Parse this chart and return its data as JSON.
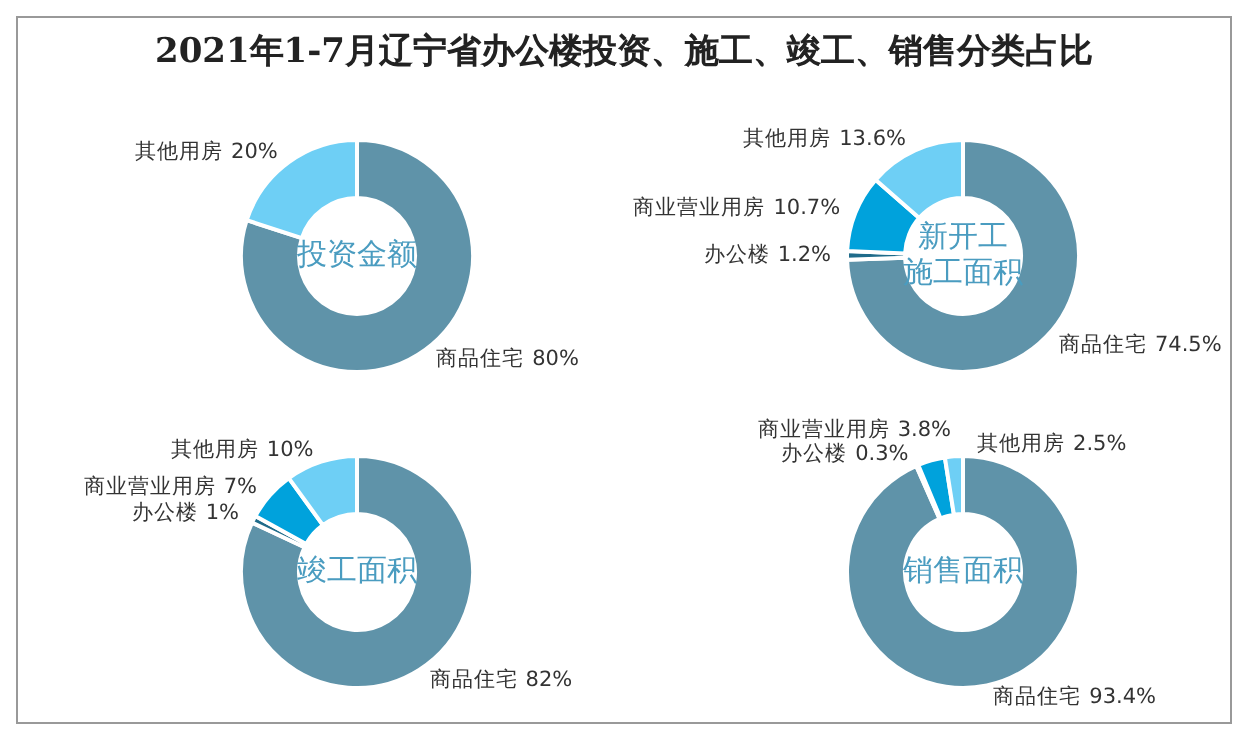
{
  "chart_data": [
    {
      "type": "donut",
      "title": "投资金额",
      "annotations": [
        "2021年1-7月辽宁省办公楼投资、施工、竣工、销售分类占比"
      ],
      "categories": [
        "商品住宅",
        "其他用房"
      ],
      "values": [
        80,
        20
      ],
      "value_labels": [
        "80%",
        "20%"
      ],
      "colors": [
        "#5f93a9",
        "#6ecff5"
      ],
      "legend": false
    },
    {
      "type": "donut",
      "title": "新开工施工面积",
      "categories": [
        "商品住宅",
        "办公楼",
        "商业营业用房",
        "其他用房"
      ],
      "values": [
        74.5,
        1.2,
        10.7,
        13.6
      ],
      "value_labels": [
        "74.5%",
        "1.2%",
        "10.7%",
        "13.6%"
      ],
      "colors": [
        "#5f93a9",
        "#1f6b8a",
        "#00a2dc",
        "#6ecff5"
      ],
      "legend": false
    },
    {
      "type": "donut",
      "title": "竣工面积",
      "categories": [
        "商品住宅",
        "办公楼",
        "商业营业用房",
        "其他用房"
      ],
      "values": [
        82,
        1,
        7,
        10
      ],
      "value_labels": [
        "82%",
        "1%",
        "7%",
        "10%"
      ],
      "colors": [
        "#5f93a9",
        "#1f6b8a",
        "#00a2dc",
        "#6ecff5"
      ],
      "legend": false
    },
    {
      "type": "donut",
      "title": "销售面积",
      "categories": [
        "商品住宅",
        "办公楼",
        "商业营业用房",
        "其他用房"
      ],
      "values": [
        93.4,
        0.3,
        3.8,
        2.5
      ],
      "value_labels": [
        "93.4%",
        "0.3%",
        "3.8%",
        "2.5%"
      ],
      "colors": [
        "#5f93a9",
        "#1f6b8a",
        "#00a2dc",
        "#6ecff5"
      ],
      "legend": false
    }
  ]
}
